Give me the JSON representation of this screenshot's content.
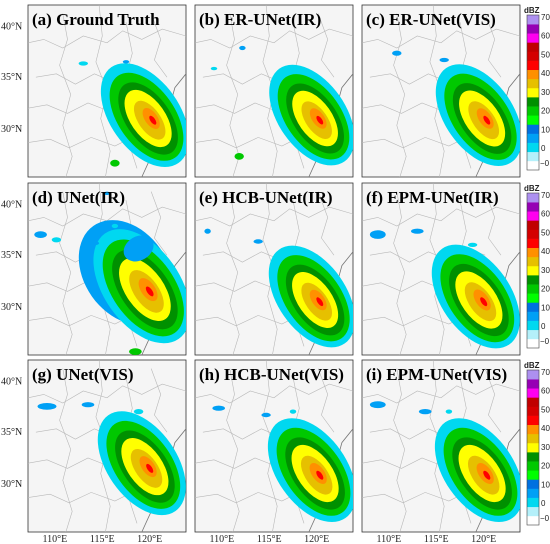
{
  "panels": [
    {
      "id": "a",
      "title": "(a) Ground Truth",
      "variant": "truth"
    },
    {
      "id": "b",
      "title": "(b) ER-UNet(IR)",
      "variant": "er_ir"
    },
    {
      "id": "c",
      "title": "(c) ER-UNet(VIS)",
      "variant": "er_vis"
    },
    {
      "id": "d",
      "title": "(d) UNet(IR)",
      "variant": "unet_ir"
    },
    {
      "id": "e",
      "title": "(e) HCB-UNet(IR)",
      "variant": "hcb_ir"
    },
    {
      "id": "f",
      "title": "(f) EPM-UNet(IR)",
      "variant": "epm_ir"
    },
    {
      "id": "g",
      "title": "(g) UNet(VIS)",
      "variant": "unet_vis"
    },
    {
      "id": "h",
      "title": "(h) HCB-UNet(VIS)",
      "variant": "hcb_vis"
    },
    {
      "id": "i",
      "title": "(i) EPM-UNet(VIS)",
      "variant": "epm_vis"
    }
  ],
  "lat_labels": [
    "40°N",
    "35°N",
    "30°N"
  ],
  "lon_labels": [
    "110°E",
    "115°E",
    "120°E"
  ],
  "colorbar": {
    "unit": "dBZ",
    "ticks": [
      "70",
      "60",
      "50",
      "40",
      "30",
      "20",
      "10",
      "0"
    ],
    "bottom_label": "−0",
    "colors": [
      "#ffffff",
      "#b4f0fa",
      "#00d8f0",
      "#00a0f5",
      "#0070e0",
      "#00ff00",
      "#00c800",
      "#009000",
      "#ffff00",
      "#e6c000",
      "#ff9000",
      "#ff0000",
      "#d40000",
      "#c00000",
      "#ff00f0",
      "#9600b4",
      "#ad90f0"
    ]
  }
}
